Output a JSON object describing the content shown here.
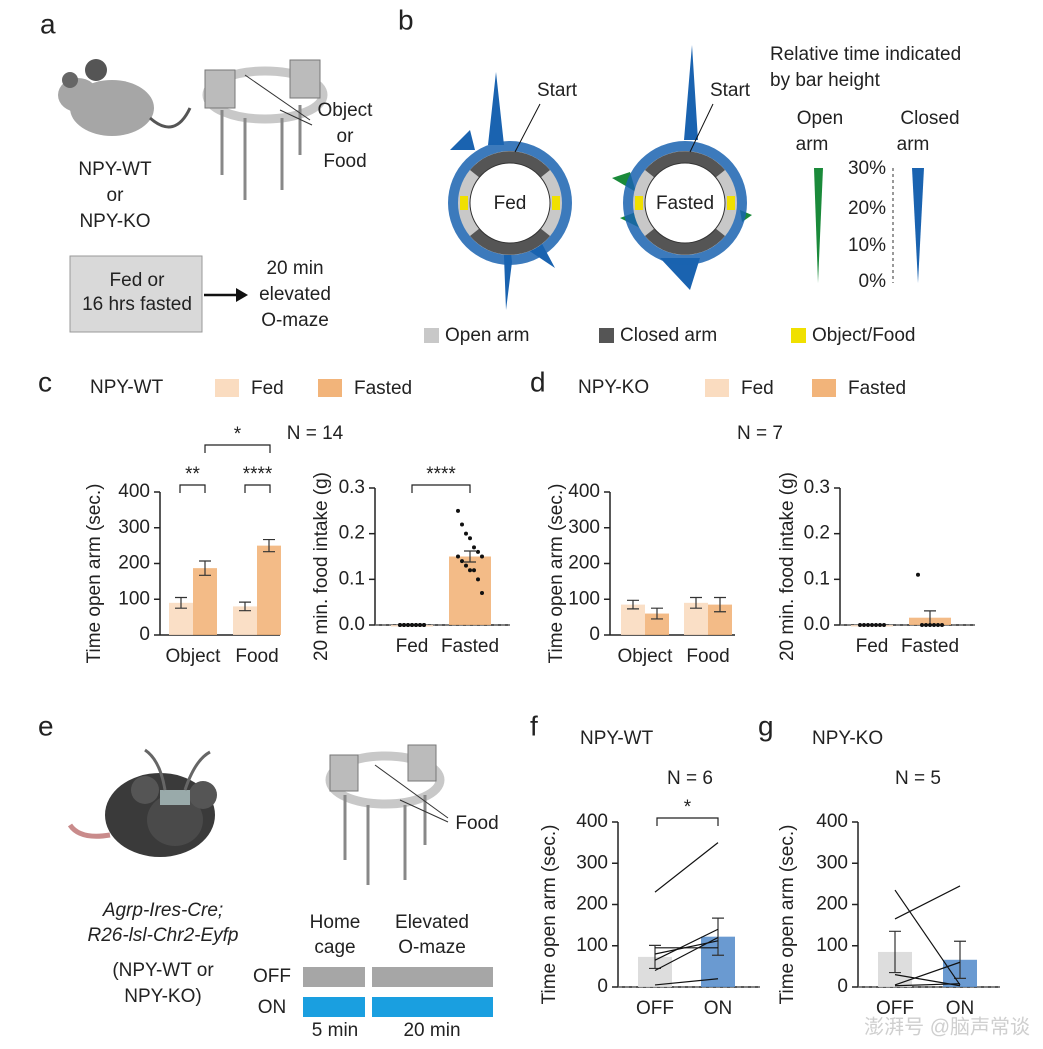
{
  "panel_a": {
    "label": "a",
    "genotype": [
      "NPY-WT",
      "or",
      "NPY-KO"
    ],
    "condition": [
      "Fed or",
      "16 hrs fasted"
    ],
    "test": [
      "20 min",
      "elevated",
      "O-maze"
    ],
    "object": [
      "Object",
      "or",
      "Food"
    ]
  },
  "panel_b": {
    "label": "b",
    "rings": [
      "Fed",
      "Fasted"
    ],
    "start": [
      "Start",
      "Start"
    ],
    "note": [
      "Relative time indicated",
      "by bar height"
    ],
    "open": [
      "Open",
      "arm"
    ],
    "closed": [
      "Closed",
      "arm"
    ],
    "scale": [
      "30%",
      "20%",
      "10%",
      "0%"
    ],
    "legend": [
      "Open arm",
      "Closed arm",
      "Object/Food"
    ]
  },
  "panel_c": {
    "label": "c",
    "genotype": "NPY-WT",
    "n": "N = 14"
  },
  "panel_d": {
    "label": "d",
    "genotype": "NPY-KO",
    "n": "N = 7"
  },
  "panel_e": {
    "label": "e",
    "mouse": [
      "Agrp-Ires-Cre;",
      "R26-lsl-Chr2-Eyfp"
    ],
    "genotype": [
      "(NPY-WT or",
      "NPY-KO)"
    ],
    "object": "Food",
    "phases": [
      [
        "Home",
        "cage"
      ],
      [
        "Elevated",
        "O-maze"
      ]
    ],
    "states": [
      "OFF",
      "ON"
    ],
    "durations": [
      "5 min",
      "20 min"
    ]
  },
  "panel_f": {
    "label": "f",
    "genotype": "NPY-WT",
    "n": "N = 6"
  },
  "panel_g": {
    "label": "g",
    "genotype": "NPY-KO",
    "n": "N = 5"
  },
  "watermark": "澎湃号 @脑声常谈",
  "chart_data": [
    {
      "type": "bar",
      "y_label": "Time open arm (sec.)",
      "categories": [
        "Object",
        "Food"
      ],
      "series": [
        {
          "name": "Fed",
          "color": "#fadcc0",
          "values": [
            90,
            80
          ],
          "errors": [
            15,
            12
          ]
        },
        {
          "name": "Fasted",
          "color": "#f2b47a",
          "values": [
            187,
            250
          ],
          "errors": [
            20,
            17
          ]
        }
      ],
      "ylim": [
        0,
        400
      ],
      "yticks": [
        0,
        100,
        200,
        300,
        400
      ],
      "annotations": [
        "**",
        "****",
        "*"
      ]
    },
    {
      "type": "bar",
      "y_label": "20 min. food intake (g)",
      "categories": [
        "Fed",
        "Fasted"
      ],
      "values": [
        0,
        0.15
      ],
      "errors": [
        0,
        0.012
      ],
      "colors": [
        "#fadcc0",
        "#f2b47a"
      ],
      "zero_line": true,
      "points": [
        [
          0,
          0,
          0,
          0,
          0,
          0,
          0,
          0,
          0,
          0,
          0,
          0,
          0,
          0
        ],
        [
          0.25,
          0.22,
          0.2,
          0.19,
          0.17,
          0.16,
          0.15,
          0.15,
          0.14,
          0.13,
          0.12,
          0.12,
          0.1,
          0.07
        ]
      ],
      "ylim": [
        0,
        0.3
      ],
      "yticks": [
        {
          "value": 0,
          "label": "0.0"
        },
        0.1,
        0.2,
        0.3
      ],
      "annotations": [
        "****"
      ]
    },
    {
      "type": "bar",
      "y_label": "Time open arm (sec.)",
      "categories": [
        "Object",
        "Food"
      ],
      "series": [
        {
          "name": "Fed",
          "color": "#fadcc0",
          "values": [
            85,
            90
          ],
          "errors": [
            12,
            15
          ]
        },
        {
          "name": "Fasted",
          "color": "#f2b47a",
          "values": [
            60,
            85
          ],
          "errors": [
            15,
            20
          ]
        }
      ],
      "ylim": [
        0,
        400
      ],
      "yticks": [
        0,
        100,
        200,
        300,
        400
      ],
      "annotations": []
    },
    {
      "type": "bar",
      "y_label": "20 min. food intake (g)",
      "categories": [
        "Fed",
        "Fasted"
      ],
      "values": [
        0,
        0.016
      ],
      "errors": [
        0,
        0.015
      ],
      "colors": [
        "#fadcc0",
        "#f2b47a"
      ],
      "zero_line": true,
      "points": [
        [
          0,
          0,
          0,
          0,
          0,
          0,
          0
        ],
        [
          0.11,
          0,
          0,
          0,
          0,
          0,
          0
        ]
      ],
      "ylim": [
        0,
        0.3
      ],
      "yticks": [
        {
          "value": 0,
          "label": "0.0"
        },
        0.1,
        0.2,
        0.3
      ],
      "annotations": []
    },
    {
      "type": "bar",
      "y_label": "Time open arm (sec.)",
      "categories": [
        "OFF",
        "ON"
      ],
      "values": [
        73,
        122
      ],
      "errors": [
        28,
        45
      ],
      "colors": [
        "#d9d9d9",
        "#5a8fcc"
      ],
      "zero_line": true,
      "pairs": [
        [
          230,
          350
        ],
        [
          40,
          120
        ],
        [
          95,
          95
        ],
        [
          65,
          140
        ],
        [
          5,
          20
        ],
        [
          80,
          112
        ]
      ],
      "ylim": [
        0,
        400
      ],
      "yticks": [
        0,
        100,
        200,
        300,
        400
      ],
      "annotations": [
        "*"
      ]
    },
    {
      "type": "bar",
      "y_label": "Time open arm (sec.)",
      "categories": [
        "OFF",
        "ON"
      ],
      "values": [
        85,
        66
      ],
      "errors": [
        50,
        45
      ],
      "colors": [
        "#d9d9d9",
        "#5a8fcc"
      ],
      "zero_line": true,
      "pairs": [
        [
          235,
          5
        ],
        [
          165,
          245
        ],
        [
          5,
          60
        ],
        [
          3,
          8
        ],
        [
          30,
          3
        ]
      ],
      "ylim": [
        0,
        400
      ],
      "yticks": [
        0,
        100,
        200,
        300,
        400
      ],
      "annotations": []
    }
  ]
}
